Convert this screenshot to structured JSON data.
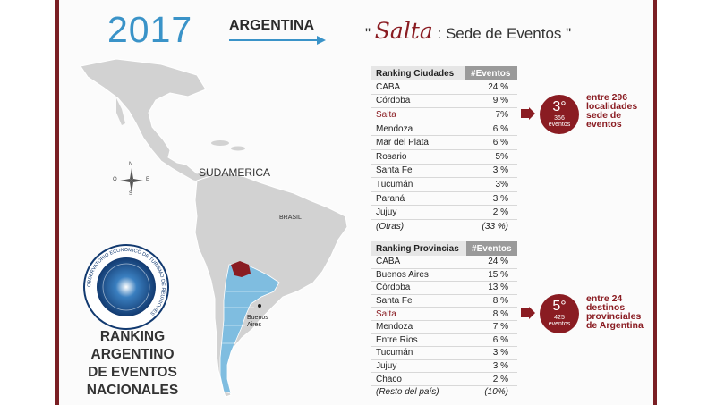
{
  "header": {
    "year": "2017",
    "country": "ARGENTINA",
    "quote_open": "\"",
    "city": "Salta",
    "subtitle": ": Sede de Eventos",
    "quote_close": "\""
  },
  "map": {
    "region_label": "SUDAMERICA",
    "country_label": "BRASIL",
    "city_label_line1": "Buenos",
    "city_label_line2": "Aires",
    "compass": {
      "n": "N",
      "s": "S",
      "e": "E",
      "o": "O"
    },
    "colors": {
      "land": "#d2d2d2",
      "argentina": "#7fbde0",
      "salta": "#8a1c22"
    }
  },
  "seal": {
    "text": "OBSERVATORIO ECONOMICO DE TURISMO DE REUNIONES"
  },
  "ranking_title": {
    "line1": "RANKING",
    "line2": "ARGENTINO",
    "line3": "DE EVENTOS",
    "line4": "NACIONALES"
  },
  "cities": {
    "header_name": "Ranking Ciudades",
    "header_value": "#Eventos",
    "rows": [
      {
        "name": "CABA",
        "value": "24 %"
      },
      {
        "name": "Córdoba",
        "value": "9 %"
      },
      {
        "name": "Salta",
        "value": "7%"
      },
      {
        "name": "Mendoza",
        "value": "6 %"
      },
      {
        "name": "Mar del Plata",
        "value": "6 %"
      },
      {
        "name": "Rosario",
        "value": "5%"
      },
      {
        "name": "Santa Fe",
        "value": "3 %"
      },
      {
        "name": "Tucumán",
        "value": "3%"
      },
      {
        "name": "Paraná",
        "value": "3 %"
      },
      {
        "name": "Jujuy",
        "value": "2 %"
      },
      {
        "name": "(Otras)",
        "value": "(33 %)"
      }
    ],
    "badge": {
      "rank": "3°",
      "count": "366",
      "unit": "eventos"
    },
    "note": [
      "entre 296",
      "localidades",
      "sede de",
      "eventos"
    ]
  },
  "provinces": {
    "header_name": "Ranking Provincias",
    "header_value": "#Eventos",
    "rows": [
      {
        "name": "CABA",
        "value": "24 %"
      },
      {
        "name": "Buenos Aires",
        "value": "15 %"
      },
      {
        "name": "Córdoba",
        "value": "13 %"
      },
      {
        "name": "Santa Fe",
        "value": "8 %"
      },
      {
        "name": "Salta",
        "value": "8 %"
      },
      {
        "name": "Mendoza",
        "value": "7 %"
      },
      {
        "name": "Entre Rios",
        "value": "6 %"
      },
      {
        "name": "Tucumán",
        "value": "3 %"
      },
      {
        "name": "Jujuy",
        "value": "3 %"
      },
      {
        "name": "Chaco",
        "value": "2 %"
      },
      {
        "name": "(Resto del país)",
        "value": "(10%)"
      }
    ],
    "badge": {
      "rank": "5°",
      "count": "425",
      "unit": "eventos"
    },
    "note": [
      "entre 24",
      "destinos",
      "provinciales",
      "de Argentina"
    ]
  }
}
